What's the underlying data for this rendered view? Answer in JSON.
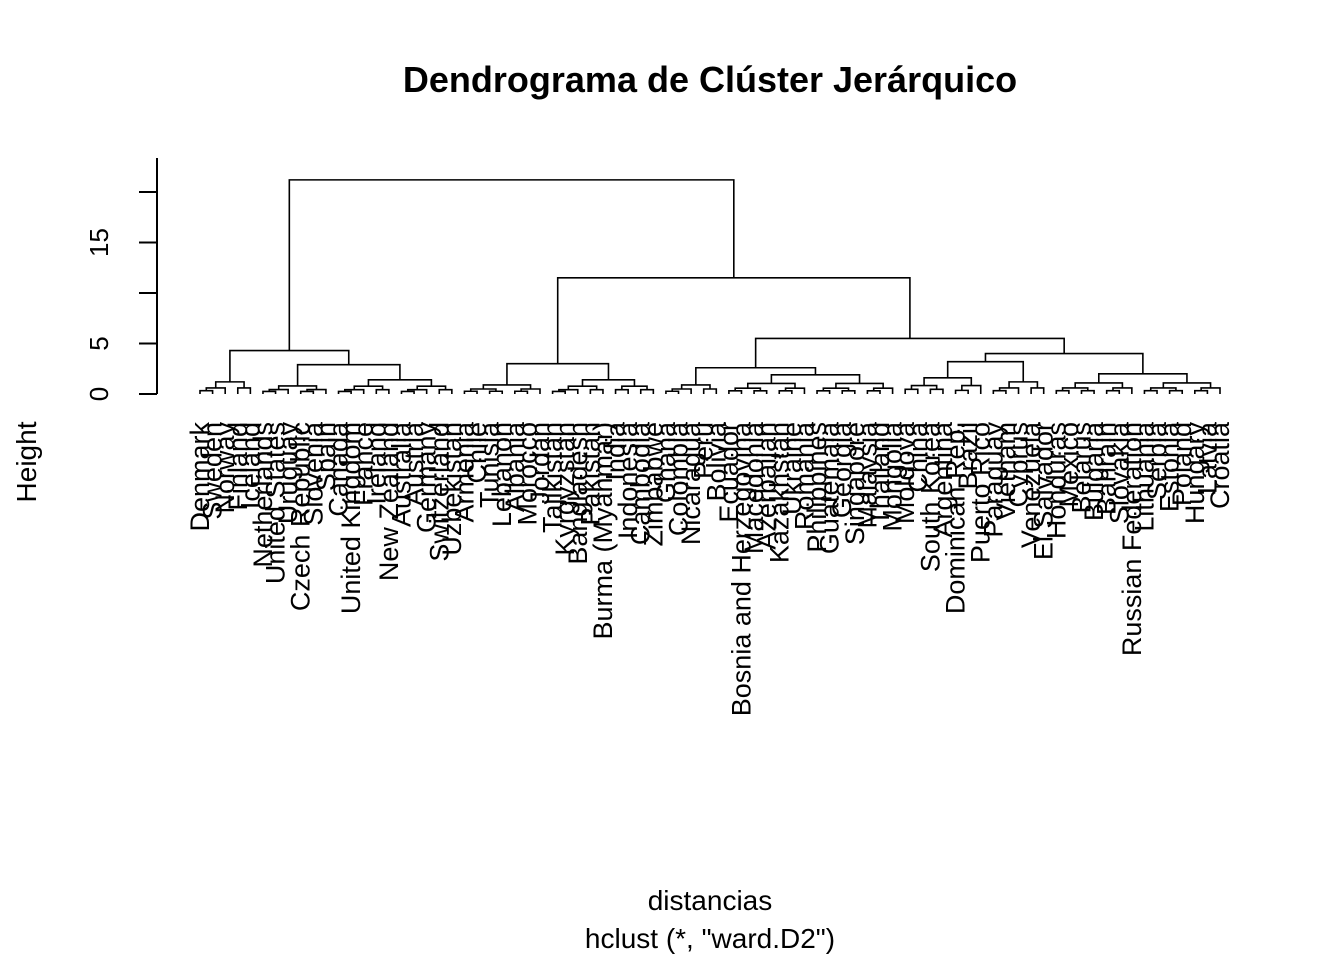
{
  "chart_data": {
    "type": "dendrogram",
    "title": "Dendrograma de Clúster Jerárquico",
    "xlabel": "distancias",
    "sub": "hclust (*, \"ward.D2\")",
    "ylabel": "Height",
    "yticks": [
      0,
      5,
      15
    ],
    "ylim": [
      0,
      21
    ],
    "leaves": [
      "Denmark",
      "Sweden",
      "Norway",
      "Finland",
      "Iceland",
      "Netherlands",
      "United States",
      "Uruguay",
      "Czech Republic",
      "Slovenia",
      "Spain",
      "Canada",
      "United Kingdom",
      "France",
      "Ireland",
      "New Zealand",
      "Australia",
      "Austria",
      "Germany",
      "Switzerland",
      "Uzbekistan",
      "Armenia",
      "Chile",
      "Tunisia",
      "Lebanon",
      "Albania",
      "Morocco",
      "Jordan",
      "Tajikistan",
      "Kyrgyzstan",
      "Bangladesh",
      "Pakistan",
      "Burma (Myanmar)",
      "India",
      "Indonesia",
      "Cambodia",
      "Zimbabwe",
      "Ghana",
      "Colombia",
      "Nicaragua",
      "Peru",
      "Bolivia",
      "Ecuador",
      "Bosnia and Herzegovina",
      "Macedonia",
      "Azerbaijan",
      "Kazakhstan",
      "Ukraine",
      "Romania",
      "Philippines",
      "Guatemala",
      "Georgia",
      "Singapore",
      "Malaysia",
      "Thailand",
      "Mongolia",
      "Moldova",
      "China",
      "South Korea",
      "Argentina",
      "Dominican Rep.",
      "Brazil",
      "Puerto Rico",
      "Paraguay",
      "Vietnam",
      "Cyprus",
      "Venezuela",
      "El Salvador",
      "Honduras",
      "Mexico",
      "Belarus",
      "Bulgaria",
      "Bahrain",
      "Slovakia",
      "Russian Federation",
      "Lithuania",
      "Serbia",
      "Estonia",
      "Poland",
      "Hungary",
      "Latvia",
      "Croatia"
    ]
  }
}
